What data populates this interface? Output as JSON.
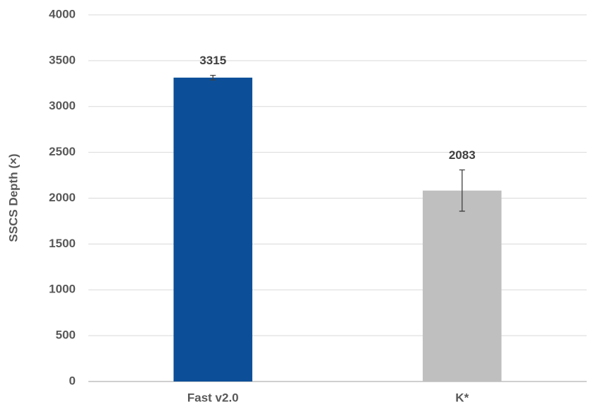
{
  "chart_data": {
    "type": "bar",
    "y_label": "SSCS Depth (×)",
    "categories": [
      "Fast v2.0",
      "K*"
    ],
    "values": [
      3315,
      2083
    ],
    "errors": [
      25,
      225
    ],
    "colors": [
      "#0c4f98",
      "#bfbfbf"
    ],
    "ylim": [
      0,
      4000
    ],
    "yticks": [
      0,
      500,
      1000,
      1500,
      2000,
      2500,
      3000,
      3500,
      4000
    ],
    "grid": true
  }
}
